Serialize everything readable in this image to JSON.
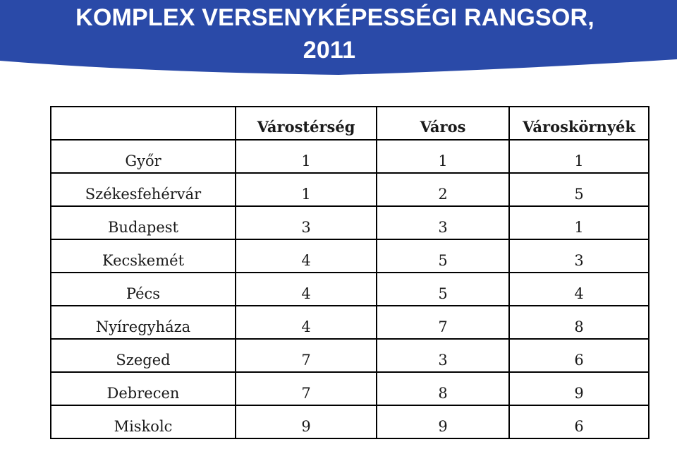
{
  "header": {
    "title_line1": "KOMPLEX VERSENYKÉPESSÉGI RANGSOR,",
    "title_line2": "2011",
    "banner_color": "#2a4aa8"
  },
  "table": {
    "columns": [
      "",
      "Várostérség",
      "Város",
      "Városkörnyék"
    ],
    "rows": [
      {
        "city": "Győr",
        "varosterseg": "1",
        "varos": "1",
        "varoskornyek": "1"
      },
      {
        "city": "Székesfehérvár",
        "varosterseg": "1",
        "varos": "2",
        "varoskornyek": "5"
      },
      {
        "city": "Budapest",
        "varosterseg": "3",
        "varos": "3",
        "varoskornyek": "1"
      },
      {
        "city": "Kecskemét",
        "varosterseg": "4",
        "varos": "5",
        "varoskornyek": "3"
      },
      {
        "city": "Pécs",
        "varosterseg": "4",
        "varos": "5",
        "varoskornyek": "4"
      },
      {
        "city": "Nyíregyháza",
        "varosterseg": "4",
        "varos": "7",
        "varoskornyek": "8"
      },
      {
        "city": "Szeged",
        "varosterseg": "7",
        "varos": "3",
        "varoskornyek": "6"
      },
      {
        "city": "Debrecen",
        "varosterseg": "7",
        "varos": "8",
        "varoskornyek": "9"
      },
      {
        "city": "Miskolc",
        "varosterseg": "9",
        "varos": "9",
        "varoskornyek": "6"
      }
    ]
  }
}
